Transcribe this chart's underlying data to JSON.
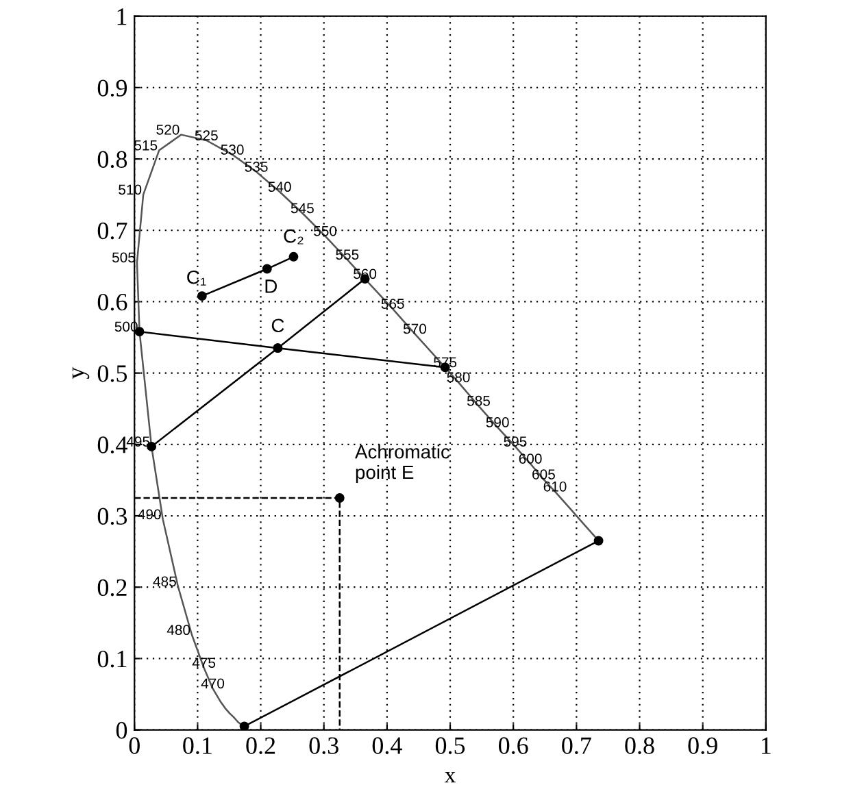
{
  "chart_data": {
    "type": "line",
    "xlabel": "x",
    "ylabel": "y",
    "xlim": [
      0,
      1
    ],
    "ylim": [
      0,
      1
    ],
    "xticks": [
      0,
      0.1,
      0.2,
      0.3,
      0.4,
      0.5,
      0.6,
      0.7,
      0.8,
      0.9,
      1
    ],
    "yticks": [
      0,
      0.1,
      0.2,
      0.3,
      0.4,
      0.5,
      0.6,
      0.7,
      0.8,
      0.9,
      1
    ],
    "grid": true,
    "legend": false,
    "series": [
      {
        "color": "#555555",
        "marker": "none",
        "line_style": "solid",
        "x": [
          0.174,
          0.174,
          0.174,
          0.174,
          0.173,
          0.173,
          0.173,
          0.172,
          0.171,
          0.17,
          0.169,
          0.167,
          0.164,
          0.161,
          0.157,
          0.151,
          0.144,
          0.136,
          0.124,
          0.11,
          0.091,
          0.069,
          0.045,
          0.027,
          0.008,
          0.004,
          0.014,
          0.039,
          0.074,
          0.114,
          0.155,
          0.193,
          0.23,
          0.266,
          0.302,
          0.337,
          0.365,
          0.409,
          0.444,
          0.492,
          0.513,
          0.545,
          0.575,
          0.603,
          0.627,
          0.648,
          0.666,
          0.68,
          0.692,
          0.701,
          0.708,
          0.714,
          0.719,
          0.723,
          0.726,
          0.728,
          0.73,
          0.731,
          0.732,
          0.733,
          0.733,
          0.734,
          0.734,
          0.735,
          0.735
        ],
        "values": [
          0.005,
          0.005,
          0.005,
          0.005,
          0.005,
          0.005,
          0.005,
          0.005,
          0.005,
          0.006,
          0.007,
          0.009,
          0.011,
          0.014,
          0.018,
          0.023,
          0.03,
          0.04,
          0.058,
          0.087,
          0.133,
          0.201,
          0.295,
          0.397,
          0.558,
          0.655,
          0.75,
          0.812,
          0.834,
          0.826,
          0.806,
          0.782,
          0.754,
          0.724,
          0.692,
          0.659,
          0.632,
          0.59,
          0.555,
          0.508,
          0.487,
          0.454,
          0.424,
          0.397,
          0.373,
          0.351,
          0.334,
          0.32,
          0.308,
          0.299,
          0.292,
          0.286,
          0.281,
          0.277,
          0.274,
          0.272,
          0.27,
          0.269,
          0.268,
          0.267,
          0.267,
          0.266,
          0.266,
          0.265,
          0.265
        ]
      },
      {
        "color": "#000000",
        "marker": "circle",
        "line_style": "solid",
        "x": [
          0.174,
          0.735
        ],
        "values": [
          0.005,
          0.265
        ]
      },
      {
        "color": "#000000",
        "marker": "circle",
        "line_style": "solid",
        "x": [
          0.027,
          0.227,
          0.365
        ],
        "values": [
          0.397,
          0.535,
          0.632
        ]
      },
      {
        "color": "#000000",
        "marker": "circle",
        "line_style": "solid",
        "x": [
          0.008,
          0.227,
          0.492
        ],
        "values": [
          0.558,
          0.535,
          0.508
        ]
      },
      {
        "color": "#000000",
        "marker": "circle",
        "line_style": "solid",
        "x": [
          0.107,
          0.21,
          0.252
        ],
        "values": [
          0.608,
          0.646,
          0.663
        ]
      },
      {
        "color": "#000000",
        "marker": "none",
        "line_style": "dashed",
        "x": [
          0,
          0.325,
          0.325
        ],
        "values": [
          0.325,
          0.325,
          0
        ]
      },
      {
        "type": "scatter",
        "color": "#000000",
        "marker": "circle",
        "x": [
          0.325
        ],
        "values": [
          0.325
        ]
      }
    ],
    "annotations": [
      {
        "text": "C₁",
        "x": 0.107,
        "y": 0.608
      },
      {
        "text": "D",
        "x": 0.21,
        "y": 0.646
      },
      {
        "text": "C₂",
        "x": 0.252,
        "y": 0.663
      },
      {
        "text": "C",
        "x": 0.227,
        "y": 0.535
      },
      {
        "text": "Achromatic\npoint E",
        "x": 0.325,
        "y": 0.325
      },
      {
        "text": "470",
        "x": 0.124,
        "y": 0.058
      },
      {
        "text": "475",
        "x": 0.11,
        "y": 0.087
      },
      {
        "text": "480",
        "x": 0.091,
        "y": 0.133
      },
      {
        "text": "485",
        "x": 0.069,
        "y": 0.201
      },
      {
        "text": "490",
        "x": 0.045,
        "y": 0.295
      },
      {
        "text": "495",
        "x": 0.027,
        "y": 0.397
      },
      {
        "text": "500",
        "x": 0.008,
        "y": 0.558
      },
      {
        "text": "505",
        "x": 0.004,
        "y": 0.655
      },
      {
        "text": "510",
        "x": 0.014,
        "y": 0.75
      },
      {
        "text": "515",
        "x": 0.039,
        "y": 0.812
      },
      {
        "text": "520",
        "x": 0.074,
        "y": 0.834
      },
      {
        "text": "525",
        "x": 0.114,
        "y": 0.826
      },
      {
        "text": "530",
        "x": 0.155,
        "y": 0.806
      },
      {
        "text": "535",
        "x": 0.193,
        "y": 0.782
      },
      {
        "text": "540",
        "x": 0.23,
        "y": 0.754
      },
      {
        "text": "545",
        "x": 0.266,
        "y": 0.724
      },
      {
        "text": "550",
        "x": 0.302,
        "y": 0.692
      },
      {
        "text": "555",
        "x": 0.337,
        "y": 0.659
      },
      {
        "text": "560",
        "x": 0.365,
        "y": 0.632
      },
      {
        "text": "565",
        "x": 0.409,
        "y": 0.59
      },
      {
        "text": "570",
        "x": 0.444,
        "y": 0.555
      },
      {
        "text": "575",
        "x": 0.492,
        "y": 0.508
      },
      {
        "text": "580",
        "x": 0.513,
        "y": 0.487
      },
      {
        "text": "585",
        "x": 0.545,
        "y": 0.454
      },
      {
        "text": "590",
        "x": 0.575,
        "y": 0.424
      },
      {
        "text": "595",
        "x": 0.603,
        "y": 0.397
      },
      {
        "text": "600",
        "x": 0.627,
        "y": 0.373
      },
      {
        "text": "605",
        "x": 0.648,
        "y": 0.351
      },
      {
        "text": "610",
        "x": 0.666,
        "y": 0.334
      }
    ]
  }
}
